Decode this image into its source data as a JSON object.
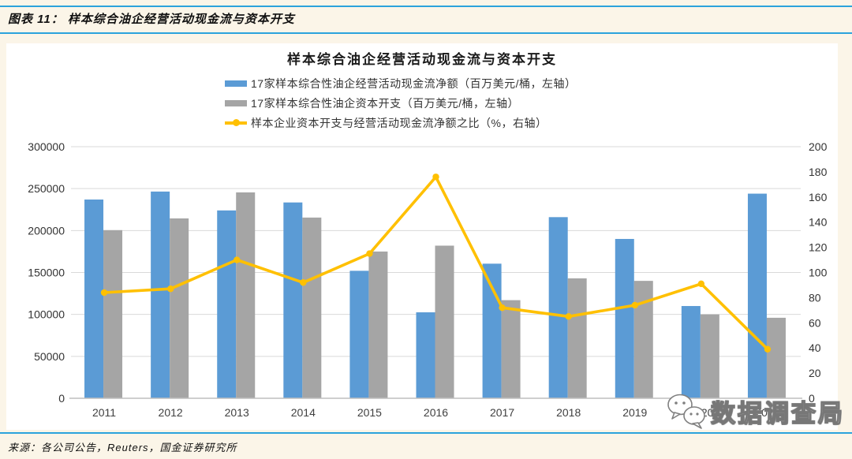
{
  "header": {
    "caption": "图表 11：  样本综合油企经营活动现金流与资本开支"
  },
  "source_note": "来源：各公司公告，Reuters，国金证券研究所",
  "watermark_text": "数据调查局",
  "colors": {
    "accent_rule_blue": "#2BA3DC",
    "page_background": "#FBF5E8",
    "panel_background": "#FFFFFF",
    "bar_blue": "#5B9BD5",
    "bar_gray": "#A5A5A5",
    "line_yellow": "#FFC000"
  },
  "chart_data": {
    "type": "bar",
    "subtype": "grouped-bars-with-line-overlay",
    "title": "样本综合油企经营活动现金流与资本开支",
    "categories": [
      "2011",
      "2012",
      "2013",
      "2014",
      "2015",
      "2016",
      "2017",
      "2018",
      "2019",
      "2020",
      "2021"
    ],
    "series": [
      {
        "name": "17家样本综合性油企经营活动现金流净额（百万美元/桶，左轴）",
        "type": "bar",
        "axis": "left",
        "color": "#5B9BD5",
        "values": [
          237000,
          246500,
          224000,
          233500,
          152000,
          102500,
          160500,
          216000,
          190000,
          110000,
          244000
        ]
      },
      {
        "name": "17家样本综合性油企资本开支（百万美元/桶，左轴）",
        "type": "bar",
        "axis": "left",
        "color": "#A5A5A5",
        "values": [
          200500,
          214500,
          245500,
          215500,
          175000,
          182000,
          117000,
          143000,
          140000,
          100000,
          96000
        ]
      },
      {
        "name": "样本企业资本开支与经营活动现金流净额之比（%，右轴）",
        "type": "line",
        "axis": "right",
        "color": "#FFC000",
        "values": [
          84,
          87,
          110,
          92,
          115,
          176,
          72,
          65,
          74,
          91,
          39
        ]
      }
    ],
    "left_axis": {
      "min": 0,
      "max": 300000,
      "step": 50000,
      "ticks": [
        0,
        50000,
        100000,
        150000,
        200000,
        250000,
        300000
      ]
    },
    "right_axis": {
      "min": 0,
      "max": 200,
      "step": 20,
      "ticks": [
        0,
        20,
        40,
        60,
        80,
        100,
        120,
        140,
        160,
        180,
        200
      ]
    },
    "grid": true,
    "legend_position": "top-center"
  }
}
